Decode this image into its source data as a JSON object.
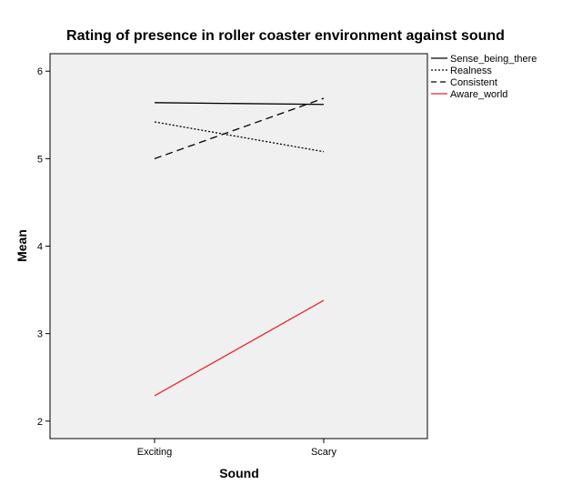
{
  "chart_data": {
    "type": "line",
    "title": "Rating of presence in roller coaster environment against sound",
    "xlabel": "Sound",
    "ylabel": "Mean",
    "categories": [
      "Exciting",
      "Scary"
    ],
    "ylim": [
      1.8,
      6.2
    ],
    "yticks": [
      "2",
      "3",
      "4",
      "5",
      "6"
    ],
    "ytick_values": [
      2,
      3,
      4,
      5,
      6
    ],
    "grid": false,
    "legend_position": "top-right outside",
    "series": [
      {
        "name": "Sense_being_there",
        "values": [
          5.64,
          5.62
        ],
        "color": "#000000",
        "style": "solid"
      },
      {
        "name": "Realness",
        "values": [
          5.42,
          5.08
        ],
        "color": "#000000",
        "style": "dotted"
      },
      {
        "name": "Consistent",
        "values": [
          5.0,
          5.69
        ],
        "color": "#000000",
        "style": "dashed"
      },
      {
        "name": "Aware_world",
        "values": [
          2.29,
          3.38
        ],
        "color": "#e8262b",
        "style": "solid"
      }
    ],
    "plot_background": "#f0f0f0"
  }
}
